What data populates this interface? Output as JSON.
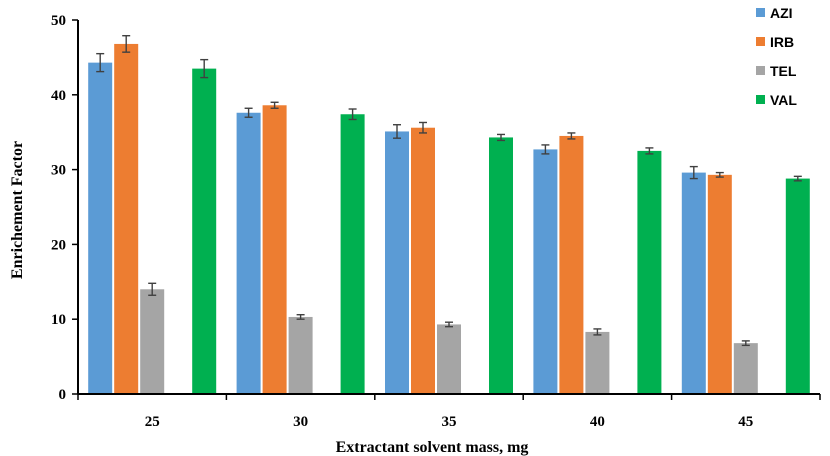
{
  "chart_data": {
    "type": "bar",
    "title": "",
    "xlabel": "Extractant solvent mass, mg",
    "ylabel": "Enrichement Factor",
    "ylim": [
      0,
      50
    ],
    "yticks": [
      0,
      10,
      20,
      30,
      40,
      50
    ],
    "grid": false,
    "legend_position": "top-right",
    "categories": [
      "25",
      "30",
      "35",
      "40",
      "45"
    ],
    "series": [
      {
        "name": "AZI",
        "color": "#5b9bd5",
        "values": [
          44.3,
          37.6,
          35.1,
          32.7,
          29.6
        ],
        "errors": [
          1.2,
          0.6,
          0.9,
          0.6,
          0.8
        ]
      },
      {
        "name": "IRB",
        "color": "#ed7d31",
        "values": [
          46.8,
          38.6,
          35.6,
          34.5,
          29.3
        ],
        "errors": [
          1.1,
          0.4,
          0.7,
          0.4,
          0.3
        ]
      },
      {
        "name": "TEL",
        "color": "#a5a5a5",
        "values": [
          14.0,
          10.3,
          9.3,
          8.3,
          6.8
        ],
        "errors": [
          0.8,
          0.3,
          0.3,
          0.4,
          0.3
        ]
      },
      {
        "name": "VAL",
        "color": "#00b050",
        "values": [
          43.5,
          37.4,
          34.3,
          32.5,
          28.8
        ],
        "errors": [
          1.2,
          0.7,
          0.4,
          0.4,
          0.3
        ]
      }
    ]
  }
}
